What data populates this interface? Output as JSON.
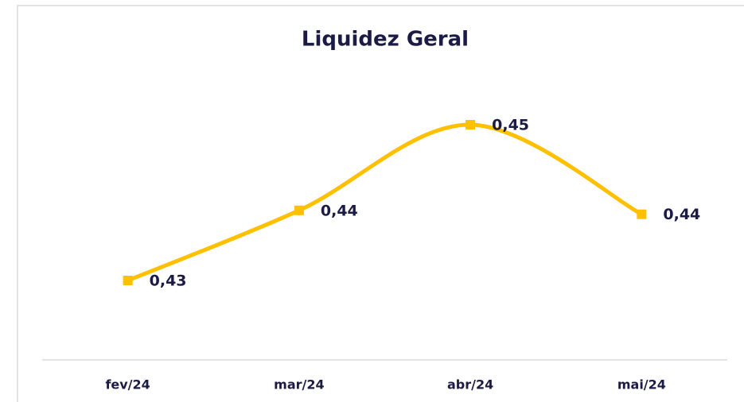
{
  "chart_data": {
    "type": "line",
    "title": "Liquidez Geral",
    "categories": [
      "fev/24",
      "mar/24",
      "abr/24",
      "mai/24"
    ],
    "values": [
      0.43,
      0.439,
      0.45,
      0.4385
    ],
    "value_labels": [
      "0,43",
      "0,44",
      "0,45",
      "0,44"
    ],
    "color": "#ffc000",
    "smooth": true,
    "ylim": [
      0.42,
      0.456
    ]
  }
}
